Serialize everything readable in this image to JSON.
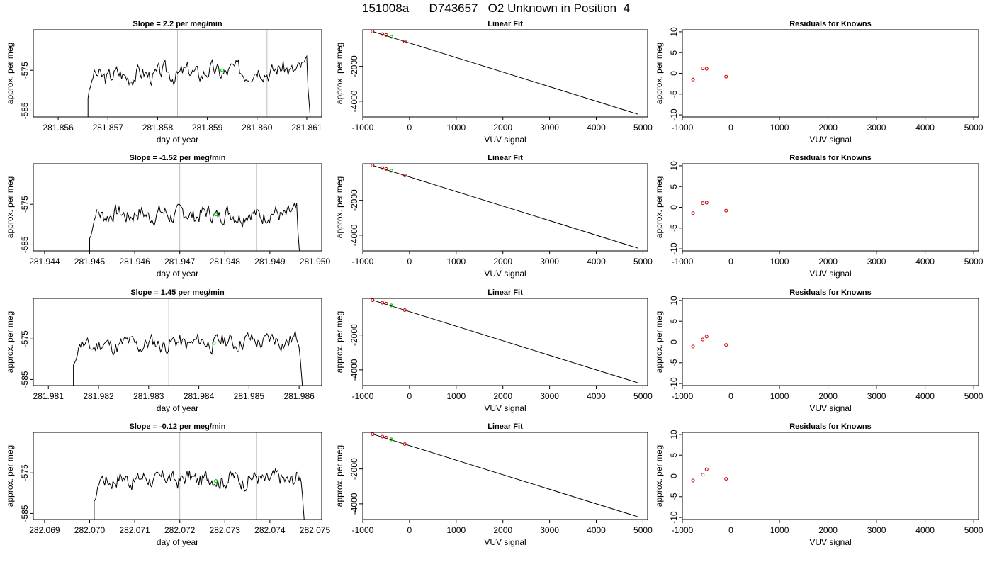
{
  "page": {
    "title": "151008a      D743657   O2 Unknown in Position  4"
  },
  "chart_data": [
    {
      "type": "line",
      "title": "Slope =  2.2  per meg/min",
      "xlabel": "day of year",
      "ylabel": "approx. per meg",
      "xlim": [
        281.8555,
        281.8613
      ],
      "ylim": [
        -586.5,
        -565
      ],
      "xticks": [
        "281.856",
        "281.857",
        "281.858",
        "281.859",
        "281.860",
        "281.861"
      ],
      "xtick_values": [
        281.856,
        281.857,
        281.858,
        281.859,
        281.86,
        281.861
      ],
      "yticks": [
        "-575",
        "-585"
      ],
      "ytick_values": [
        -575,
        -585
      ],
      "start": 281.8566,
      "end": 281.8611,
      "base": -575.5,
      "amp": 2.1,
      "slope": 0.5,
      "seed": 3,
      "vlines": [
        281.8584,
        281.8602
      ],
      "marker": [
        281.8593,
        -575.0
      ],
      "line_color": "#000000",
      "vline_color": "#bdbdbd",
      "marker_color": "#00cc00"
    },
    {
      "type": "scatter",
      "title": "Linear Fit",
      "xlabel": "VUV signal",
      "ylabel": "approx. per meg",
      "xlim": [
        -1000,
        5100
      ],
      "ylim": [
        -4900,
        100
      ],
      "xticks": [
        "-1000",
        "0",
        "1000",
        "2000",
        "3000",
        "4000",
        "5000"
      ],
      "xtick_values": [
        -1000,
        0,
        1000,
        2000,
        3000,
        4000,
        5000
      ],
      "yticks": [
        "-2000",
        "-4000"
      ],
      "ytick_values": [
        -2000,
        -4000
      ],
      "points": [
        [
          -790,
          0
        ],
        [
          -580,
          -150
        ],
        [
          -500,
          -200
        ],
        [
          -100,
          -570
        ]
      ],
      "green_point": [
        -390,
        -300
      ],
      "fit_line": [
        [
          -790,
          0
        ],
        [
          4900,
          -4750
        ]
      ],
      "point_color": "#cc0000",
      "green_color": "#00cc00"
    },
    {
      "type": "scatter",
      "title": "Residuals for Knowns",
      "xlabel": "VUV signal",
      "ylabel": "approx. per meg",
      "xlim": [
        -1000,
        5100
      ],
      "ylim": [
        -10.5,
        10.5
      ],
      "xticks": [
        "-1000",
        "0",
        "1000",
        "2000",
        "3000",
        "4000",
        "5000"
      ],
      "xtick_values": [
        -1000,
        0,
        1000,
        2000,
        3000,
        4000,
        5000
      ],
      "yticks": [
        "-10",
        "-5",
        "0",
        "5",
        "10"
      ],
      "ytick_values": [
        -10,
        -5,
        0,
        5,
        10
      ],
      "points": [
        [
          -780,
          -1.5
        ],
        [
          -580,
          1.2
        ],
        [
          -500,
          1.1
        ],
        [
          -100,
          -0.8
        ]
      ],
      "point_color": "#cc0000"
    },
    {
      "type": "line",
      "title": "Slope =  -1.52  per meg/min",
      "xlabel": "day of year",
      "ylabel": "approx. per meg",
      "xlim": [
        281.94375,
        281.95015
      ],
      "ylim": [
        -586.5,
        -565
      ],
      "xticks": [
        "281.944",
        "281.945",
        "281.946",
        "281.947",
        "281.948",
        "281.949",
        "281.950"
      ],
      "xtick_values": [
        281.944,
        281.945,
        281.946,
        281.947,
        281.948,
        281.949,
        281.95
      ],
      "yticks": [
        "-575",
        "-585"
      ],
      "ytick_values": [
        -575,
        -585
      ],
      "start": 281.945,
      "end": 281.9497,
      "base": -577.5,
      "amp": 2.0,
      "slope": 0.0,
      "seed": 7,
      "vlines": [
        281.947,
        281.9487
      ],
      "marker": [
        281.9478,
        -577.5
      ],
      "line_color": "#000000",
      "vline_color": "#bdbdbd",
      "marker_color": "#00cc00"
    },
    {
      "type": "scatter",
      "title": "Linear Fit",
      "xlabel": "VUV signal",
      "ylabel": "approx. per meg",
      "xlim": [
        -1000,
        5100
      ],
      "ylim": [
        -4900,
        100
      ],
      "xticks": [
        "-1000",
        "0",
        "1000",
        "2000",
        "3000",
        "4000",
        "5000"
      ],
      "xtick_values": [
        -1000,
        0,
        1000,
        2000,
        3000,
        4000,
        5000
      ],
      "yticks": [
        "-2000",
        "-4000"
      ],
      "ytick_values": [
        -2000,
        -4000
      ],
      "points": [
        [
          -790,
          0
        ],
        [
          -580,
          -150
        ],
        [
          -500,
          -200
        ],
        [
          -100,
          -570
        ]
      ],
      "green_point": [
        -390,
        -300
      ],
      "fit_line": [
        [
          -790,
          0
        ],
        [
          4900,
          -4750
        ]
      ],
      "point_color": "#cc0000",
      "green_color": "#00cc00"
    },
    {
      "type": "scatter",
      "title": "Residuals for Knowns",
      "xlabel": "VUV signal",
      "ylabel": "approx. per meg",
      "xlim": [
        -1000,
        5100
      ],
      "ylim": [
        -10.5,
        10.5
      ],
      "xticks": [
        "-1000",
        "0",
        "1000",
        "2000",
        "3000",
        "4000",
        "5000"
      ],
      "xtick_values": [
        -1000,
        0,
        1000,
        2000,
        3000,
        4000,
        5000
      ],
      "yticks": [
        "-10",
        "-5",
        "0",
        "5",
        "10"
      ],
      "ytick_values": [
        -10,
        -5,
        0,
        5,
        10
      ],
      "points": [
        [
          -780,
          -1.4
        ],
        [
          -580,
          1.0
        ],
        [
          -500,
          1.1
        ],
        [
          -100,
          -0.8
        ]
      ],
      "point_color": "#cc0000"
    },
    {
      "type": "line",
      "title": "Slope =  1.45  per meg/min",
      "xlabel": "day of year",
      "ylabel": "approx. per meg",
      "xlim": [
        281.9807,
        281.98645
      ],
      "ylim": [
        -586.5,
        -565
      ],
      "xticks": [
        "281.981",
        "281.982",
        "281.983",
        "281.984",
        "281.985",
        "281.986"
      ],
      "xtick_values": [
        281.981,
        281.982,
        281.983,
        281.984,
        281.985,
        281.986
      ],
      "yticks": [
        "-575",
        "-585"
      ],
      "ytick_values": [
        -575,
        -585
      ],
      "start": 281.9815,
      "end": 281.9861,
      "base": -576.0,
      "amp": 2.0,
      "slope": 0.4,
      "seed": 11,
      "vlines": [
        281.9834,
        281.9852
      ],
      "marker": [
        281.9843,
        -576.0
      ],
      "line_color": "#000000",
      "vline_color": "#bdbdbd",
      "marker_color": "#00cc00"
    },
    {
      "type": "scatter",
      "title": "Linear Fit",
      "xlabel": "VUV signal",
      "ylabel": "approx. per meg",
      "xlim": [
        -1000,
        5100
      ],
      "ylim": [
        -4900,
        100
      ],
      "xticks": [
        "-1000",
        "0",
        "1000",
        "2000",
        "3000",
        "4000",
        "5000"
      ],
      "xtick_values": [
        -1000,
        0,
        1000,
        2000,
        3000,
        4000,
        5000
      ],
      "yticks": [
        "-2000",
        "-4000"
      ],
      "ytick_values": [
        -2000,
        -4000
      ],
      "points": [
        [
          -790,
          0
        ],
        [
          -580,
          -150
        ],
        [
          -500,
          -200
        ],
        [
          -100,
          -570
        ]
      ],
      "green_point": [
        -390,
        -300
      ],
      "fit_line": [
        [
          -790,
          0
        ],
        [
          4900,
          -4750
        ]
      ],
      "point_color": "#cc0000",
      "green_color": "#00cc00"
    },
    {
      "type": "scatter",
      "title": "Residuals for Knowns",
      "xlabel": "VUV signal",
      "ylabel": "approx. per meg",
      "xlim": [
        -1000,
        5100
      ],
      "ylim": [
        -10.5,
        10.5
      ],
      "xticks": [
        "-1000",
        "0",
        "1000",
        "2000",
        "3000",
        "4000",
        "5000"
      ],
      "xtick_values": [
        -1000,
        0,
        1000,
        2000,
        3000,
        4000,
        5000
      ],
      "yticks": [
        "-10",
        "-5",
        "0",
        "5",
        "10"
      ],
      "ytick_values": [
        -10,
        -5,
        0,
        5,
        10
      ],
      "points": [
        [
          -780,
          -1.1
        ],
        [
          -580,
          0.6
        ],
        [
          -500,
          1.3
        ],
        [
          -100,
          -0.7
        ]
      ],
      "point_color": "#cc0000"
    },
    {
      "type": "line",
      "title": "Slope =  -0.12  per meg/min",
      "xlabel": "day of year",
      "ylabel": "approx. per meg",
      "xlim": [
        282.06875,
        282.07515
      ],
      "ylim": [
        -586.5,
        -565
      ],
      "xticks": [
        "282.069",
        "282.070",
        "282.071",
        "282.072",
        "282.073",
        "282.074",
        "282.075"
      ],
      "xtick_values": [
        282.069,
        282.07,
        282.071,
        282.072,
        282.073,
        282.074,
        282.075
      ],
      "yticks": [
        "-575",
        "-585"
      ],
      "ytick_values": [
        -575,
        -585
      ],
      "start": 282.0701,
      "end": 282.0748,
      "base": -576.5,
      "amp": 2.0,
      "slope": 0.0,
      "seed": 17,
      "vlines": [
        282.072,
        282.0737
      ],
      "marker": [
        282.0728,
        -577.0
      ],
      "line_color": "#000000",
      "vline_color": "#bdbdbd",
      "marker_color": "#00cc00"
    },
    {
      "type": "scatter",
      "title": "Linear Fit",
      "xlabel": "VUV signal",
      "ylabel": "approx. per meg",
      "xlim": [
        -1000,
        5100
      ],
      "ylim": [
        -4900,
        100
      ],
      "xticks": [
        "-1000",
        "0",
        "1000",
        "2000",
        "3000",
        "4000",
        "5000"
      ],
      "xtick_values": [
        -1000,
        0,
        1000,
        2000,
        3000,
        4000,
        5000
      ],
      "yticks": [
        "-2000",
        "-4000"
      ],
      "ytick_values": [
        -2000,
        -4000
      ],
      "points": [
        [
          -790,
          0
        ],
        [
          -580,
          -150
        ],
        [
          -500,
          -200
        ],
        [
          -100,
          -570
        ]
      ],
      "green_point": [
        -390,
        -300
      ],
      "fit_line": [
        [
          -790,
          0
        ],
        [
          4900,
          -4750
        ]
      ],
      "point_color": "#cc0000",
      "green_color": "#00cc00"
    },
    {
      "type": "scatter",
      "title": "Residuals for Knowns",
      "xlabel": "VUV signal",
      "ylabel": "approx. per meg",
      "xlim": [
        -1000,
        5100
      ],
      "ylim": [
        -10.5,
        10.5
      ],
      "xticks": [
        "-1000",
        "0",
        "1000",
        "2000",
        "3000",
        "4000",
        "5000"
      ],
      "xtick_values": [
        -1000,
        0,
        1000,
        2000,
        3000,
        4000,
        5000
      ],
      "yticks": [
        "-10",
        "-5",
        "0",
        "5",
        "10"
      ],
      "ytick_values": [
        -10,
        -5,
        0,
        5,
        10
      ],
      "points": [
        [
          -780,
          -1.1
        ],
        [
          -580,
          0.3
        ],
        [
          -500,
          1.6
        ],
        [
          -100,
          -0.7
        ]
      ],
      "point_color": "#cc0000"
    }
  ]
}
